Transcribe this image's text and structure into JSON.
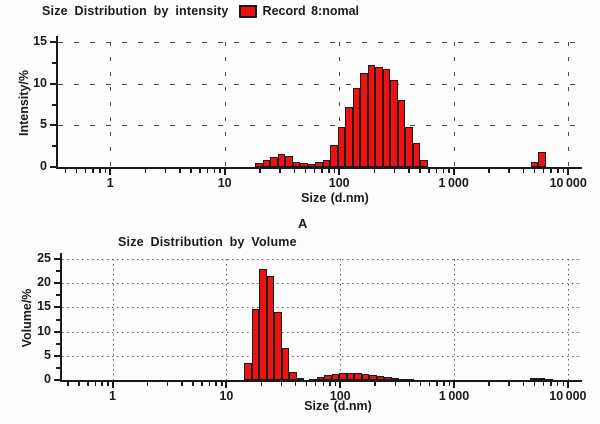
{
  "page": {
    "panel_label": "A"
  },
  "colors": {
    "bar_fill": "#ee1111",
    "bar_border": "#1b1b1b",
    "axis": "#1a1a1a",
    "grid": "#4a4a4a",
    "text": "#1a1a1a",
    "background": "#fdfdfd"
  },
  "chart_data": [
    {
      "id": "intensity",
      "type": "bar",
      "title": "Size Distribution by intensity",
      "legend": {
        "label": "Record 8:nomal",
        "swatch_color": "#ee1111",
        "position": "right-of-title"
      },
      "xlabel": "Size (d.nm)",
      "ylabel": "Intensity/%",
      "x_scale": "log10",
      "xlim": [
        0.35,
        13200
      ],
      "ylim": [
        0,
        15
      ],
      "grid_style": "dashed",
      "y_major_ticks": [
        0,
        5,
        10,
        15
      ],
      "y_tick_labels": [
        "0",
        "5",
        "10",
        "15"
      ],
      "y_minor_ticks": [
        2.5,
        7.5,
        12.5
      ],
      "x_decade_ticks": [
        1,
        10,
        100,
        1000,
        10000
      ],
      "x_tick_labels": [
        "1",
        "10",
        "100",
        "1 000",
        "10 000"
      ],
      "bars": [
        [
          18.5,
          21.5,
          0.45
        ],
        [
          21.5,
          25.0,
          0.9
        ],
        [
          25.0,
          29.1,
          1.25
        ],
        [
          29.1,
          33.9,
          1.6
        ],
        [
          33.9,
          39.4,
          1.3
        ],
        [
          39.4,
          45.8,
          0.65
        ],
        [
          45.8,
          53.2,
          0.5
        ],
        [
          53.2,
          61.9,
          0.4
        ],
        [
          61.9,
          72.0,
          0.55
        ],
        [
          72.0,
          83.8,
          0.9
        ],
        [
          83.8,
          97.4,
          2.6
        ],
        [
          97.4,
          113.3,
          4.8
        ],
        [
          113.3,
          131.7,
          7.2
        ],
        [
          131.7,
          153.2,
          9.5
        ],
        [
          153.2,
          178.2,
          11.3
        ],
        [
          178.2,
          207.3,
          12.3
        ],
        [
          207.3,
          241.1,
          12.0
        ],
        [
          241.1,
          280.4,
          11.8
        ],
        [
          280.4,
          326.1,
          10.5
        ],
        [
          326.1,
          379.2,
          8.1
        ],
        [
          379.2,
          441.0,
          4.8
        ],
        [
          441.0,
          512.9,
          2.9
        ],
        [
          512.9,
          596.5,
          0.9
        ],
        [
          4700,
          5470,
          0.6
        ],
        [
          5470,
          6360,
          1.75
        ]
      ]
    },
    {
      "id": "volume",
      "type": "bar",
      "title": "Size Distribution by Volume",
      "xlabel": "Size (d.nm)",
      "ylabel": "Volume/%",
      "x_scale": "log10",
      "xlim": [
        0.36,
        13300
      ],
      "ylim": [
        0,
        25
      ],
      "grid_style": "dotted",
      "y_major_ticks": [
        0,
        5,
        10,
        15,
        20,
        25
      ],
      "y_tick_labels": [
        "0",
        "5",
        "10",
        "15",
        "20",
        "25"
      ],
      "y_minor_ticks": [
        2.5,
        7.5,
        12.5,
        17.5,
        22.5
      ],
      "x_decade_ticks": [
        1,
        10,
        100,
        1000,
        10000
      ],
      "x_tick_labels": [
        "1",
        "10",
        "100",
        "1 000",
        "10 000"
      ],
      "bars": [
        [
          14.4,
          16.8,
          3.5
        ],
        [
          16.8,
          19.5,
          14.7
        ],
        [
          19.5,
          22.7,
          23.0
        ],
        [
          22.7,
          26.4,
          21.5
        ],
        [
          26.4,
          30.8,
          14.0
        ],
        [
          30.8,
          35.8,
          6.6
        ],
        [
          35.8,
          41.7,
          1.6
        ],
        [
          41.7,
          48.5,
          0.4
        ],
        [
          53.4,
          62.2,
          0.3
        ],
        [
          62.2,
          72.4,
          0.6
        ],
        [
          72.4,
          84.2,
          1.0
        ],
        [
          84.2,
          98.0,
          1.3
        ],
        [
          98.0,
          114.1,
          1.5
        ],
        [
          114.1,
          132.8,
          1.5
        ],
        [
          132.8,
          154.6,
          1.4
        ],
        [
          154.6,
          179.9,
          1.2
        ],
        [
          179.9,
          209.4,
          1.0
        ],
        [
          209.4,
          243.8,
          0.8
        ],
        [
          243.8,
          283.7,
          0.6
        ],
        [
          283.7,
          330.2,
          0.45
        ],
        [
          330.2,
          384.3,
          0.3
        ],
        [
          384.3,
          447.3,
          0.2
        ],
        [
          4660,
          5420,
          0.35
        ],
        [
          5420,
          6310,
          0.5
        ],
        [
          6310,
          7340,
          0.3
        ]
      ]
    }
  ]
}
